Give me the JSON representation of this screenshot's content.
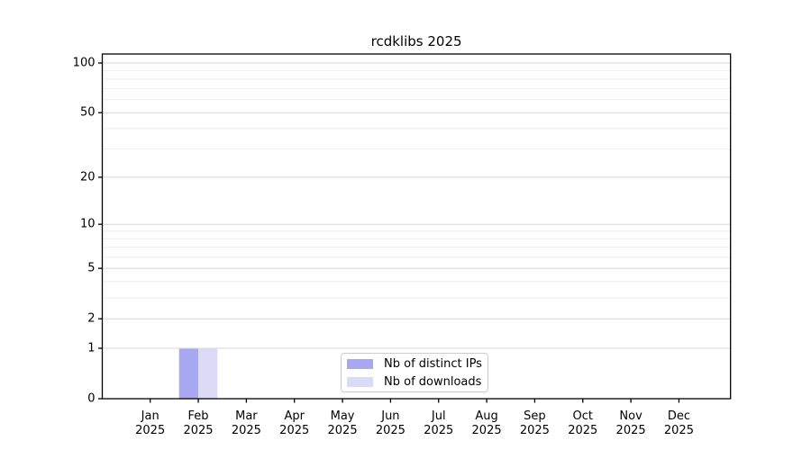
{
  "chart_data": {
    "type": "bar",
    "title": "rcdklibs 2025",
    "x_categories": [
      {
        "label": "Jan",
        "sublabel": "2025"
      },
      {
        "label": "Feb",
        "sublabel": "2025"
      },
      {
        "label": "Mar",
        "sublabel": "2025"
      },
      {
        "label": "Apr",
        "sublabel": "2025"
      },
      {
        "label": "May",
        "sublabel": "2025"
      },
      {
        "label": "Jun",
        "sublabel": "2025"
      },
      {
        "label": "Jul",
        "sublabel": "2025"
      },
      {
        "label": "Aug",
        "sublabel": "2025"
      },
      {
        "label": "Sep",
        "sublabel": "2025"
      },
      {
        "label": "Oct",
        "sublabel": "2025"
      },
      {
        "label": "Nov",
        "sublabel": "2025"
      },
      {
        "label": "Dec",
        "sublabel": "2025"
      }
    ],
    "series": [
      {
        "name": "Nb of distinct IPs",
        "color": "#a8a8f0",
        "values": [
          0,
          1,
          0,
          0,
          0,
          0,
          0,
          0,
          0,
          0,
          0,
          0
        ]
      },
      {
        "name": "Nb of downloads",
        "color": "#dbdbf7",
        "values": [
          0,
          1,
          0,
          0,
          0,
          0,
          0,
          0,
          0,
          0,
          0,
          0
        ]
      }
    ],
    "y_axis": {
      "scale": "log10(1+y)",
      "major_ticks": [
        0,
        1,
        2,
        5,
        10,
        20,
        50,
        100
      ],
      "minor_gridlines": [
        3,
        4,
        6,
        7,
        8,
        9,
        30,
        40,
        60,
        70,
        80,
        90
      ],
      "ylim": [
        0,
        113.3
      ]
    },
    "xlabel": "",
    "ylabel": "",
    "grid": true,
    "legend_position": "inside-bottom-center"
  },
  "colors": {
    "background": "#ffffff",
    "axis": "#000000",
    "major_grid": "#d7d7d7",
    "minor_grid": "#eeeeee",
    "legend_border": "#cccccc",
    "tick_label": "#000000"
  }
}
